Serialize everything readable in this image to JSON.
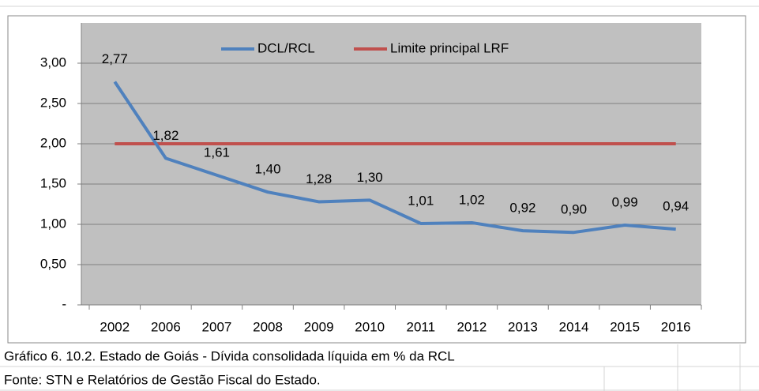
{
  "chart_data": {
    "type": "line",
    "categories": [
      "2002",
      "2006",
      "2007",
      "2008",
      "2009",
      "2010",
      "2011",
      "2012",
      "2013",
      "2014",
      "2015",
      "2016"
    ],
    "series": [
      {
        "name": "DCL/RCL",
        "color": "#4f81bd",
        "values": [
          2.77,
          1.82,
          1.61,
          1.4,
          1.28,
          1.3,
          1.01,
          1.02,
          0.92,
          0.9,
          0.99,
          0.94
        ],
        "value_labels": [
          "2,77",
          "1,82",
          "1,61",
          "1,40",
          "1,28",
          "1,30",
          "1,01",
          "1,02",
          "0,92",
          "0,90",
          "0,99",
          "0,94"
        ]
      },
      {
        "name": "Limite principal LRF",
        "color": "#c0504d",
        "values": [
          2,
          2,
          2,
          2,
          2,
          2,
          2,
          2,
          2,
          2,
          2,
          2
        ]
      }
    ],
    "ylim": [
      0,
      3.5
    ],
    "yticks": [
      {
        "value": 0,
        "label": "-"
      },
      {
        "value": 0.5,
        "label": "0,50"
      },
      {
        "value": 1,
        "label": "1,00"
      },
      {
        "value": 1.5,
        "label": "1,50"
      },
      {
        "value": 2,
        "label": "2,00"
      },
      {
        "value": 2.5,
        "label": "2,50"
      },
      {
        "value": 3,
        "label": "3,00"
      }
    ],
    "grid": true,
    "legend": "top",
    "plot_background": "#c0c0c0"
  },
  "caption": "Gráfico 6. 10.2. Estado de Goiás -  Dívida consolidada líquida em % da RCL",
  "source": "Fonte: STN e Relatórios de Gestão Fiscal do Estado."
}
